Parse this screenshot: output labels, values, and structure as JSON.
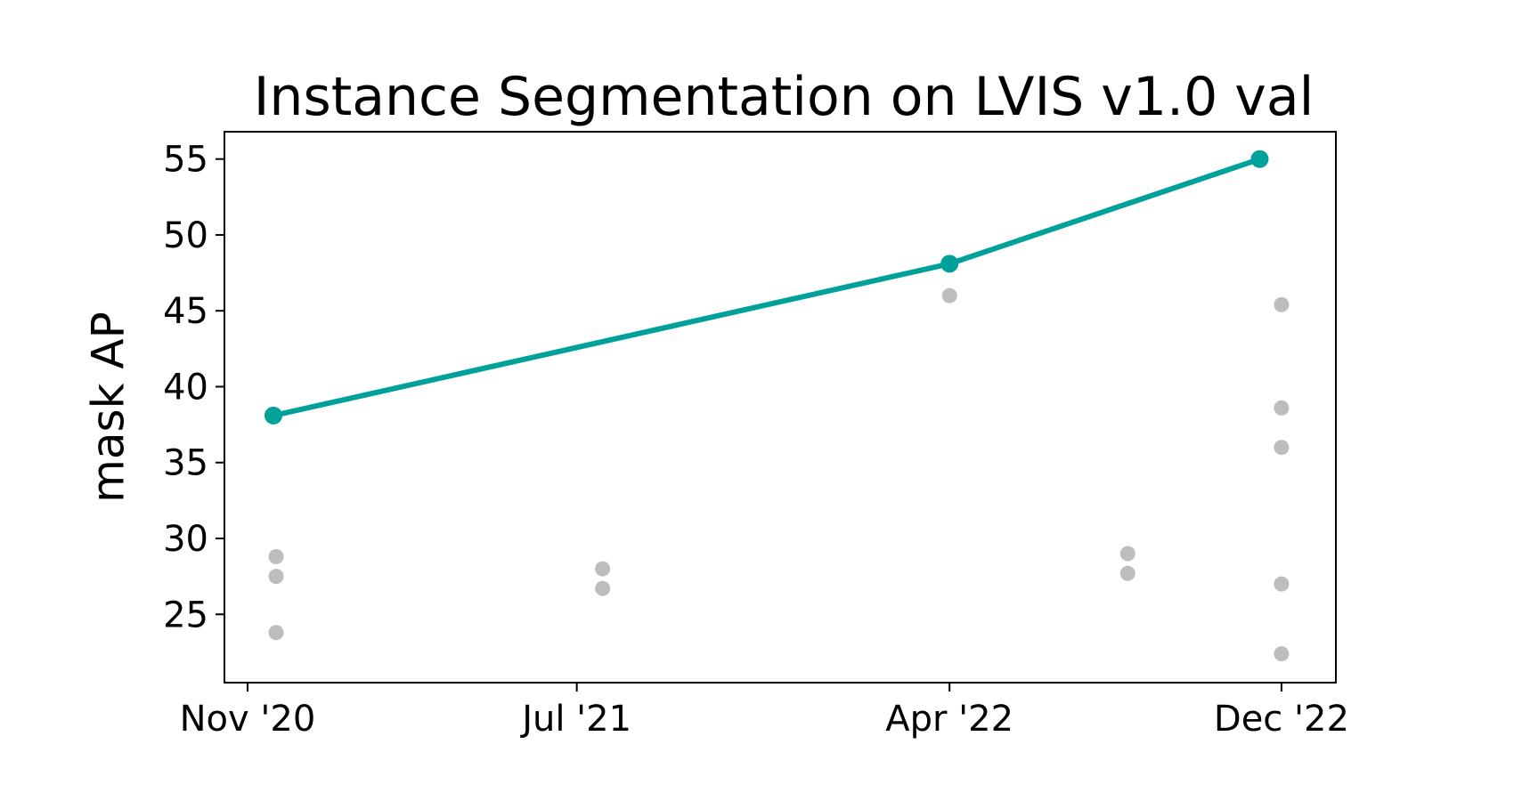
{
  "chart_data": {
    "type": "scatter",
    "title": "Instance Segmentation on LVIS v1.0 val",
    "xlabel": "",
    "ylabel": "mask AP",
    "x_axis_type": "date",
    "xlim": [
      "2020-10-15",
      "2023-01-10"
    ],
    "ylim": [
      20.5,
      56.8
    ],
    "x_ticks": [
      {
        "date": "2020-11-01",
        "label": "Nov '20"
      },
      {
        "date": "2021-07-01",
        "label": "Jul '21"
      },
      {
        "date": "2022-04-01",
        "label": "Apr '22"
      },
      {
        "date": "2022-12-01",
        "label": "Dec '22"
      }
    ],
    "y_ticks": [
      25,
      30,
      35,
      40,
      45,
      50,
      55
    ],
    "grid": false,
    "legend": null,
    "colors": {
      "frontier": "#00a19a",
      "others": "#bdbdbd",
      "axis": "#000000"
    },
    "series": [
      {
        "role": "state-of-the-art",
        "style": "line+markers",
        "color": "#00a19a",
        "points": [
          {
            "date": "2020-11-20",
            "y": 38.1
          },
          {
            "date": "2022-04-01",
            "y": 48.1
          },
          {
            "date": "2022-11-15",
            "y": 55.0
          }
        ]
      },
      {
        "role": "other-models",
        "style": "markers",
        "color": "#bdbdbd",
        "points": [
          {
            "date": "2020-11-22",
            "y": 28.8
          },
          {
            "date": "2020-11-22",
            "y": 27.5
          },
          {
            "date": "2020-11-22",
            "y": 23.8
          },
          {
            "date": "2021-07-20",
            "y": 28.0
          },
          {
            "date": "2021-07-20",
            "y": 26.7
          },
          {
            "date": "2022-04-01",
            "y": 46.0
          },
          {
            "date": "2022-08-10",
            "y": 29.0
          },
          {
            "date": "2022-08-10",
            "y": 27.7
          },
          {
            "date": "2022-12-01",
            "y": 45.4
          },
          {
            "date": "2022-12-01",
            "y": 38.6
          },
          {
            "date": "2022-12-01",
            "y": 36.0
          },
          {
            "date": "2022-12-01",
            "y": 27.0
          },
          {
            "date": "2022-12-01",
            "y": 22.4
          }
        ]
      }
    ]
  }
}
